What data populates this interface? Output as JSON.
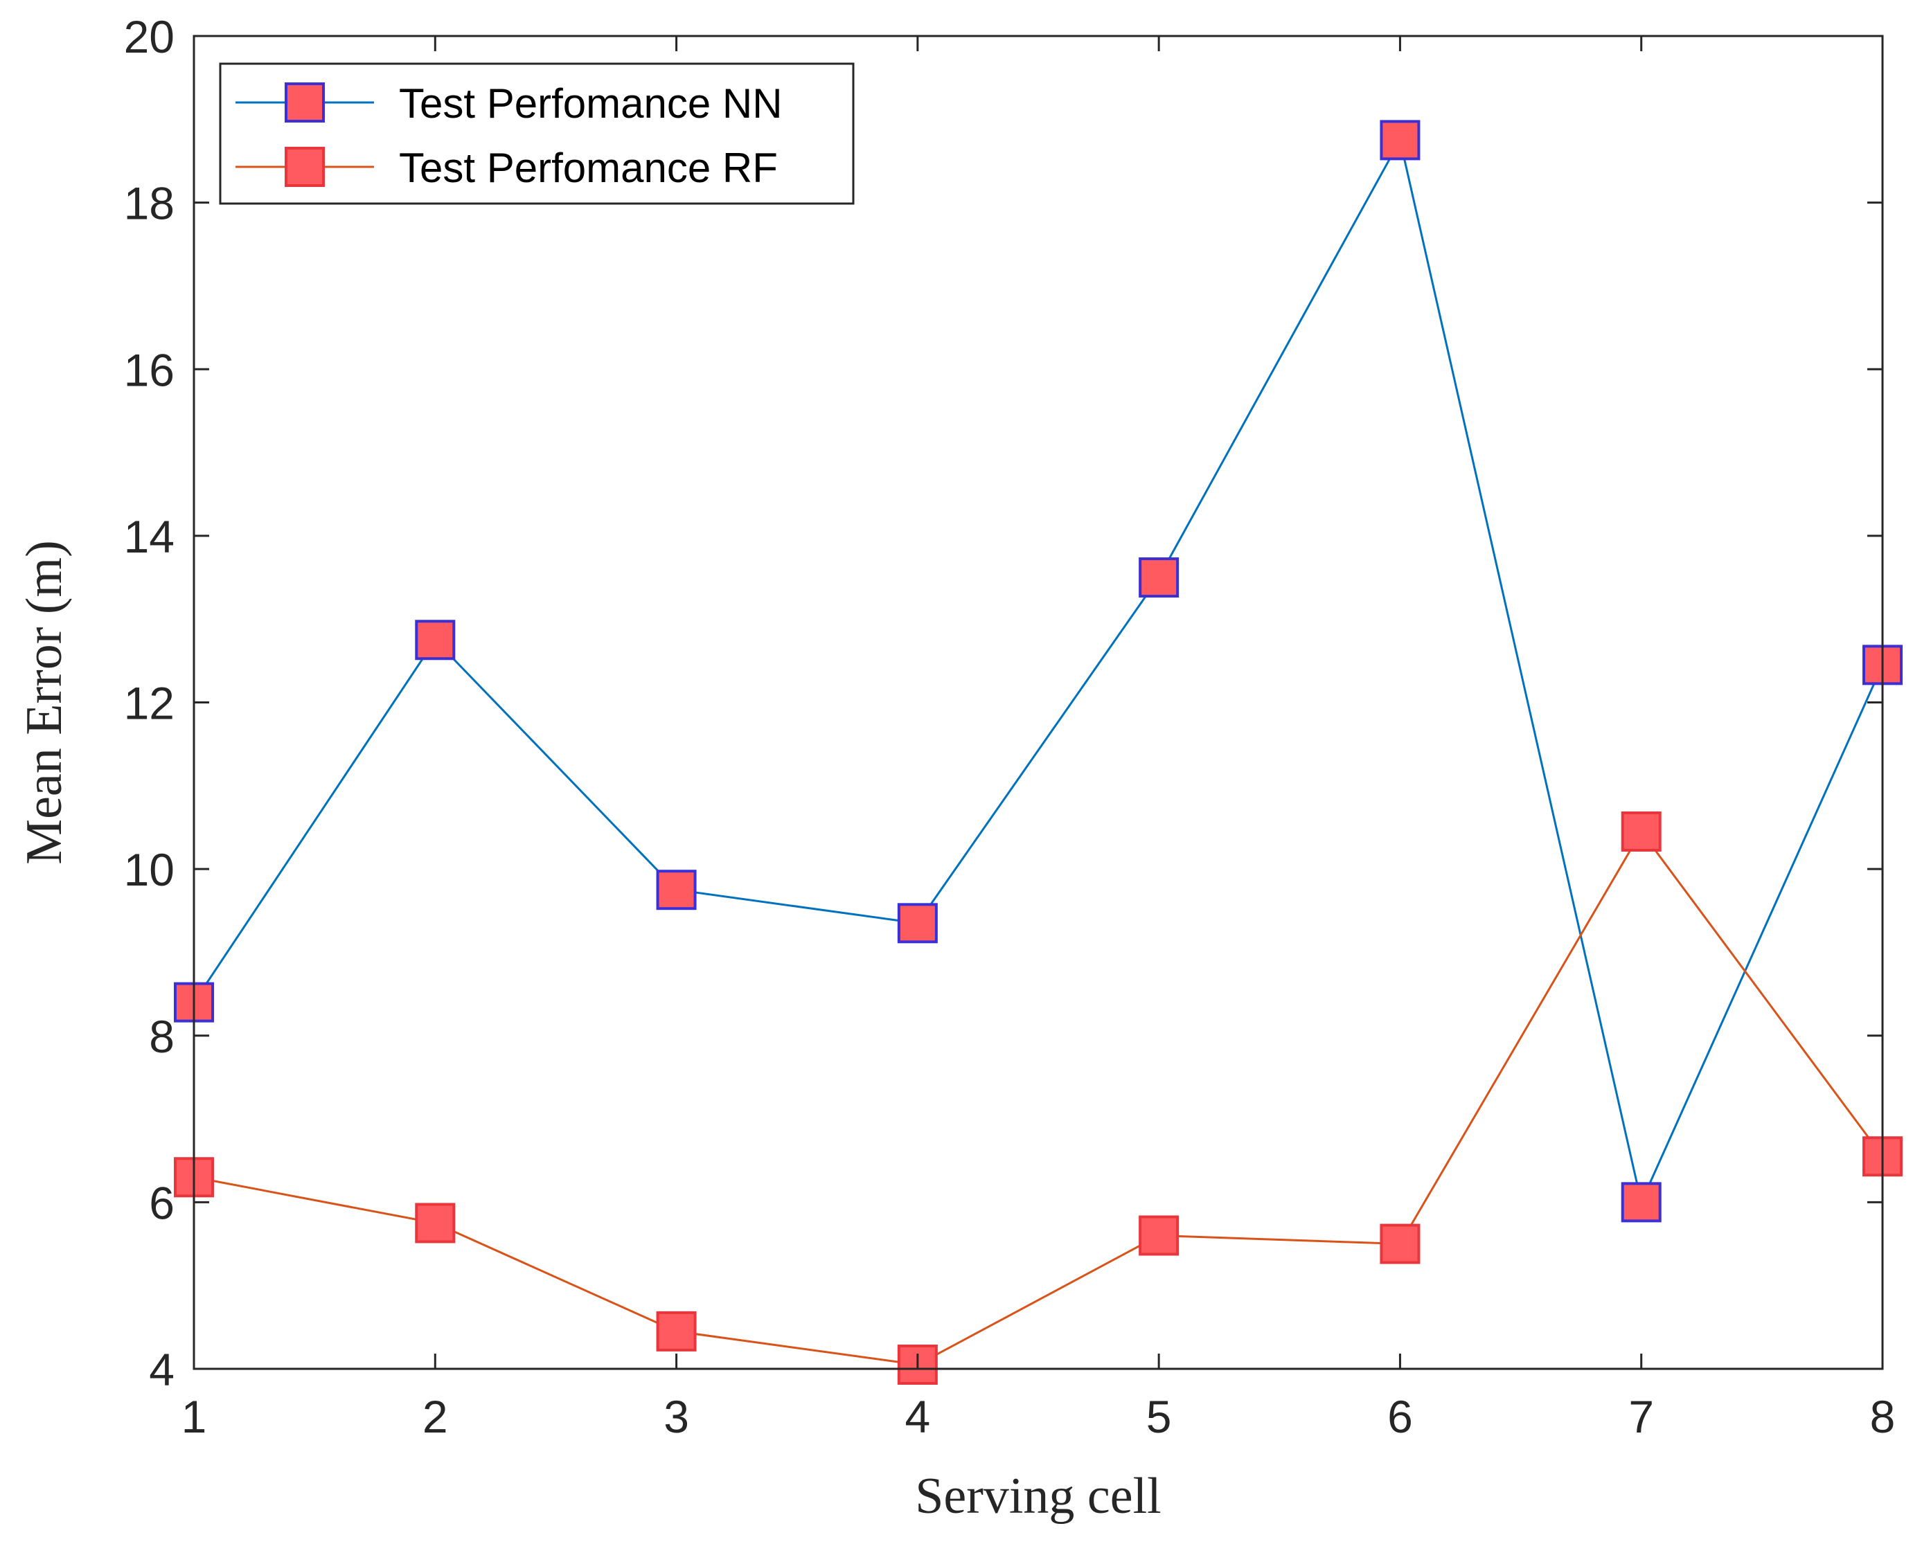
{
  "chart_data": {
    "type": "line",
    "title": "",
    "xlabel": "Serving cell",
    "ylabel": "Mean Error (m)",
    "x": [
      1,
      2,
      3,
      4,
      5,
      6,
      7,
      8
    ],
    "xlim": [
      1,
      8
    ],
    "ylim": [
      4,
      20
    ],
    "xticks": [
      1,
      2,
      3,
      4,
      5,
      6,
      7,
      8
    ],
    "yticks": [
      4,
      6,
      8,
      10,
      12,
      14,
      16,
      18,
      20
    ],
    "grid": false,
    "legend_position": "top-left",
    "series": [
      {
        "name": "Test Perfomance NN",
        "values": [
          8.4,
          12.75,
          9.75,
          9.35,
          13.5,
          18.75,
          6.0,
          12.45
        ],
        "line_color": "#0072BD",
        "marker": "square",
        "marker_fill": "#FF5A5F",
        "marker_edge": "#3B2FD6"
      },
      {
        "name": "Test Perfomance RF",
        "values": [
          6.3,
          5.75,
          4.45,
          4.05,
          5.6,
          5.5,
          10.45,
          6.55
        ],
        "line_color": "#D95319",
        "marker": "square",
        "marker_fill": "#FF5A5F",
        "marker_edge": "#E8363C"
      }
    ]
  }
}
